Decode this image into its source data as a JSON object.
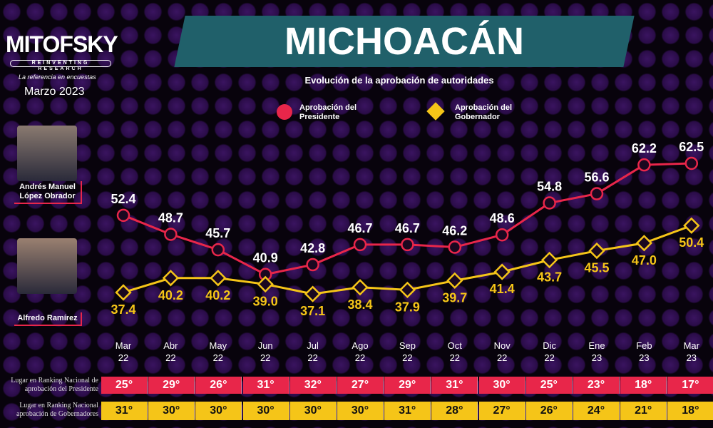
{
  "brand": {
    "logo": "MITOFSKY",
    "logo_sub": "REINVENTING RESEARCH",
    "tagline": "La referencia en encuestas",
    "date": "Marzo 2023"
  },
  "people": [
    {
      "name": "Andrés Manuel López Obrador"
    },
    {
      "name": "Alfredo Ramírez"
    }
  ],
  "chart_data": {
    "type": "line",
    "title": "MICHOACÁN",
    "subtitle": "Evolución de la aprobación de autoridades",
    "categories": [
      [
        "Mar",
        "22"
      ],
      [
        "Abr",
        "22"
      ],
      [
        "May",
        "22"
      ],
      [
        "Jun",
        "22"
      ],
      [
        "Jul",
        "22"
      ],
      [
        "Ago",
        "22"
      ],
      [
        "Sep",
        "22"
      ],
      [
        "Oct",
        "22"
      ],
      [
        "Nov",
        "22"
      ],
      [
        "Dic",
        "22"
      ],
      [
        "Ene",
        "23"
      ],
      [
        "Feb",
        "23"
      ],
      [
        "Mar",
        "23"
      ]
    ],
    "series": [
      {
        "name": "Aprobación del Presidente",
        "color": "#e8264a",
        "marker": "circle",
        "values": [
          52.4,
          48.7,
          45.7,
          40.9,
          42.8,
          46.7,
          46.7,
          46.2,
          48.6,
          54.8,
          56.6,
          62.2,
          62.5
        ]
      },
      {
        "name": "Aprobación del Gobernador",
        "color": "#f5c518",
        "marker": "diamond",
        "values": [
          37.4,
          40.2,
          40.2,
          39.0,
          37.1,
          38.4,
          37.9,
          39.7,
          41.4,
          43.7,
          45.5,
          47.0,
          50.4
        ]
      }
    ],
    "legend": "top"
  },
  "rankings": [
    {
      "label": "Lugar en Ranking Nacional de aprobación del Presidente",
      "color": "#e8264a",
      "values": [
        "25°",
        "29°",
        "26°",
        "31°",
        "32°",
        "27°",
        "29°",
        "31°",
        "30°",
        "25°",
        "23°",
        "18°",
        "17°"
      ]
    },
    {
      "label": "Lugar en Ranking Nacional aprobación de Gobernadores",
      "color": "#f5c518",
      "values": [
        "31°",
        "30°",
        "30°",
        "30°",
        "30°",
        "30°",
        "31°",
        "28°",
        "27°",
        "26°",
        "24°",
        "21°",
        "18°"
      ]
    }
  ]
}
